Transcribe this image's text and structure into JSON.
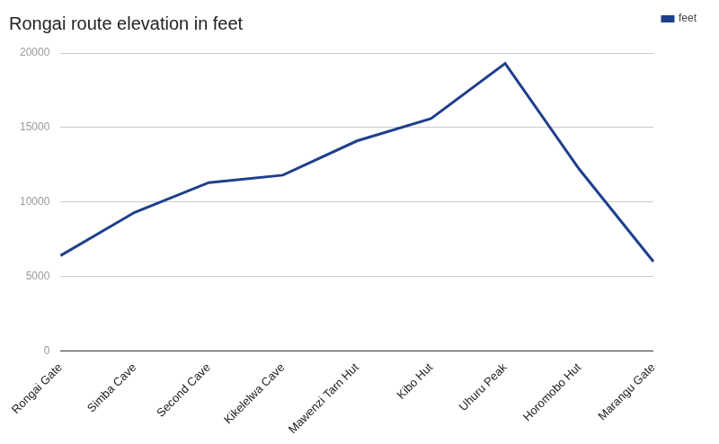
{
  "chart_data": {
    "type": "line",
    "title": "Rongai route elevation in feet",
    "categories": [
      "Rongai Gate",
      "Simba Cave",
      "Second Cave",
      "Kikelelwa Cave",
      "Mawenzi Tarn Hut",
      "Kibo Hut",
      "Uhuru Peak",
      "Horomobo Hut",
      "Marangu Gate"
    ],
    "series": [
      {
        "name": "feet",
        "color": "#1f3f8c",
        "values": [
          6400,
          9300,
          11300,
          11800,
          14100,
          15600,
          19300,
          12200,
          6000
        ]
      }
    ],
    "ylim": [
      0,
      20000
    ],
    "yticks": [
      0,
      5000,
      10000,
      15000,
      20000
    ],
    "grid": true,
    "legend": "right"
  }
}
